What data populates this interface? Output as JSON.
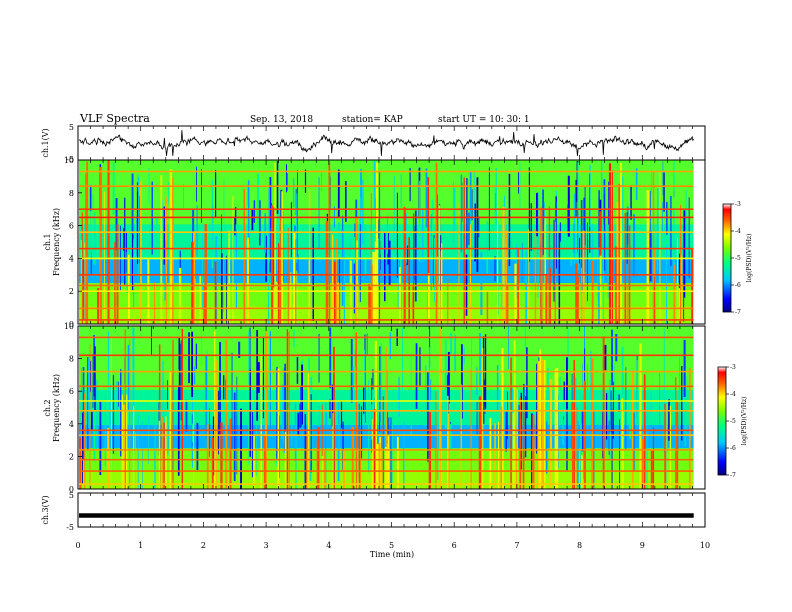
{
  "header": {
    "title": "VLF Spectra",
    "date": "Sep. 13, 2018",
    "station": "station= KAP",
    "start": "start  UT =   10: 30: 1"
  },
  "chart_data": [
    {
      "type": "line",
      "panel": "ch1-waveform",
      "ylabel": "ch.1(V)",
      "ylim": [
        -5,
        5
      ],
      "yticks": [
        "5",
        "-5"
      ],
      "xlim": [
        0,
        10
      ],
      "data_until": 9.82,
      "series": [
        {
          "note": "noisy waveform",
          "mean": 0.0,
          "amplitude": 1.8
        }
      ]
    },
    {
      "type": "heatmap",
      "panel": "ch1-spectrogram",
      "ylabel": "ch.1\nFrequency (kHz)",
      "ylim": [
        0,
        10
      ],
      "yticks": [
        "0",
        "2",
        "4",
        "6",
        "8",
        "10"
      ],
      "xlim": [
        0,
        10
      ],
      "data_until": 9.82,
      "bands_khz": [
        0.25,
        0.95,
        2.0,
        2.35,
        3.0,
        4.0,
        4.6,
        5.6,
        6.5,
        7.0,
        8.4,
        9.3
      ],
      "colorbar": {
        "min": -7,
        "max": -3,
        "ticks": [
          "-3",
          "-4",
          "-5",
          "-6",
          "-7"
        ],
        "label": "log(PSD)(V²/Hz)"
      }
    },
    {
      "type": "heatmap",
      "panel": "ch2-spectrogram",
      "ylabel": "ch.2\nFrequency (kHz)",
      "ylim": [
        0,
        10
      ],
      "yticks": [
        "0",
        "2",
        "4",
        "6",
        "8",
        "10"
      ],
      "xlim": [
        0,
        10
      ],
      "data_until": 9.82,
      "bands_khz": [
        0.3,
        1.1,
        1.8,
        2.4,
        3.3,
        3.6,
        4.8,
        5.4,
        6.3,
        7.2,
        8.2,
        9.3
      ],
      "colorbar": {
        "min": -7,
        "max": -3,
        "ticks": [
          "-3",
          "-4",
          "-5",
          "-6",
          "-7"
        ],
        "label": "log(PSD)(V²/Hz)"
      }
    },
    {
      "type": "line",
      "panel": "ch3-waveform",
      "ylabel": "ch.3(V)",
      "ylim": [
        -5,
        5
      ],
      "yticks": [
        "5",
        "-5"
      ],
      "xlim": [
        0,
        10
      ],
      "data_until": 9.82,
      "series": [
        {
          "note": "flat line",
          "mean": -1.6,
          "amplitude": 0.0
        }
      ]
    }
  ],
  "xaxis": {
    "label": "Time (min)",
    "ticks": [
      "0",
      "1",
      "2",
      "3",
      "4",
      "5",
      "6",
      "7",
      "8",
      "9",
      "10"
    ]
  }
}
